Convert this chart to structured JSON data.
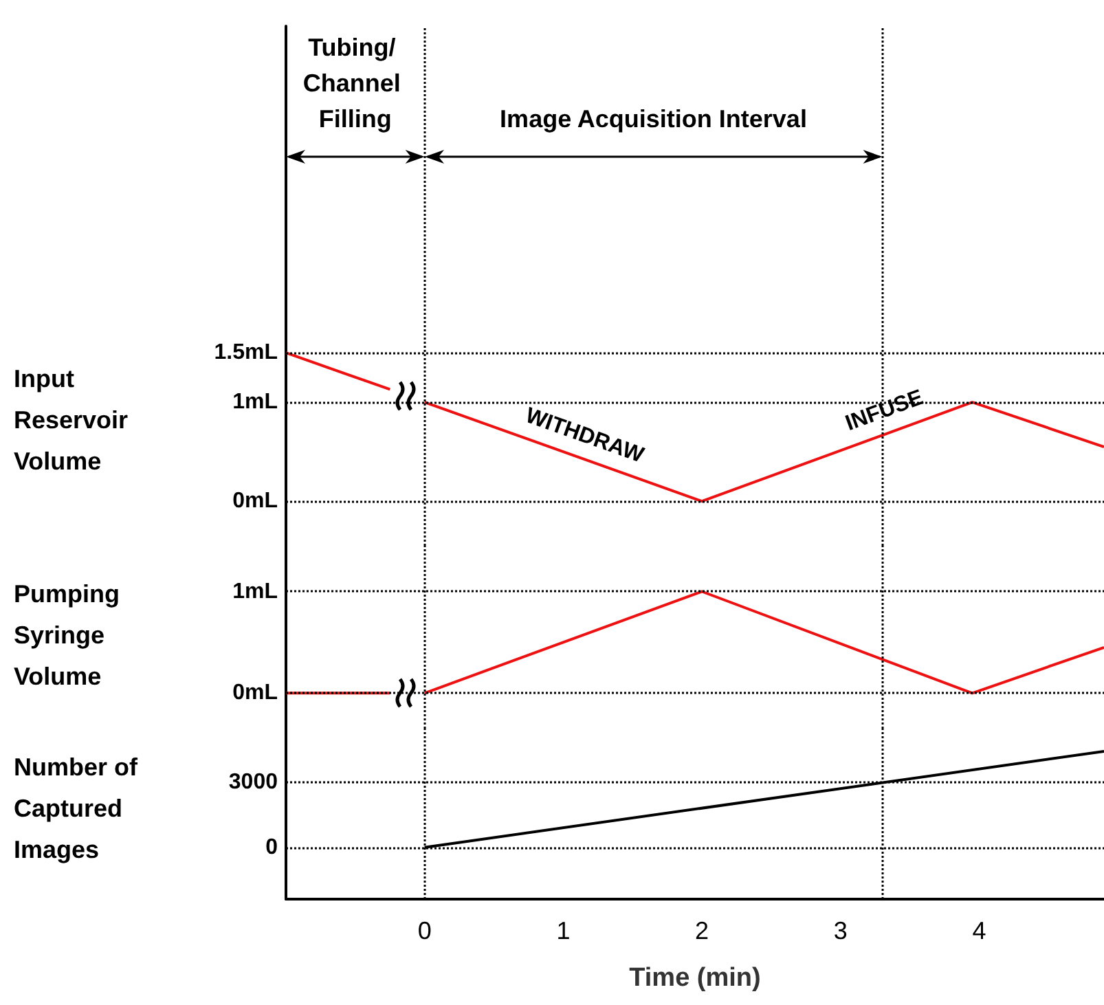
{
  "chart_data": [
    {
      "type": "line",
      "ylabel": "Input Reservoir Volume",
      "xlim": [
        -1,
        4.9
      ],
      "xticks": [
        0,
        1,
        2,
        3,
        4
      ],
      "ylim": [
        -0.45,
        4.8
      ],
      "yticks": [
        {
          "value": 0,
          "label": "0mL"
        },
        {
          "value": 1,
          "label": "1mL"
        },
        {
          "value": 1.5,
          "label": "1.5mL"
        }
      ],
      "tick_labels": "y",
      "grid": "y",
      "marker": "none",
      "series": [
        {
          "color": "#ee1111",
          "x": [
            -1,
            -0.25,
            -0.12,
            0,
            2,
            3.95,
            4.9
          ],
          "values": [
            1.5,
            1.13,
            null,
            1,
            0,
            1,
            0.55
          ]
        }
      ],
      "ref_lines": [
        {
          "axis": "x",
          "value": 0
        },
        {
          "axis": "x",
          "value": 3.3
        }
      ],
      "annotations": [
        "Tubing/ Channel Filling",
        "Image Acquisition Interval",
        "WITHDRAW",
        "INFUSE"
      ]
    },
    {
      "type": "line",
      "ylabel": "Pumping Syringe Volume",
      "xlim": [
        -1,
        4.9
      ],
      "xticks": [
        0,
        1,
        2,
        3,
        4
      ],
      "ylim": [
        -0.35,
        1.45
      ],
      "yticks": [
        {
          "value": 0,
          "label": "0mL"
        },
        {
          "value": 1,
          "label": "1mL"
        }
      ],
      "tick_labels": "y",
      "grid": "y",
      "marker": "none",
      "series": [
        {
          "color": "#ee1111",
          "x": [
            -1,
            -0.25,
            -0.12,
            0,
            2,
            3.95,
            4.9
          ],
          "values": [
            0,
            0,
            null,
            0,
            1,
            0,
            0.45
          ]
        }
      ],
      "ref_lines": [
        {
          "axis": "x",
          "value": 0
        },
        {
          "axis": "x",
          "value": 3.3
        }
      ]
    },
    {
      "type": "line",
      "ylabel": "Number of Captured Images",
      "xlabel": "Time (min)",
      "xlim": [
        -1,
        4.9
      ],
      "xticks": [
        0,
        1,
        2,
        3,
        4
      ],
      "ylim": [
        -2400,
        5500
      ],
      "yticks": [
        0,
        3000
      ],
      "grid": "y",
      "marker": "none",
      "series": [
        {
          "color": "#000000",
          "x": [
            0,
            4.9
          ],
          "values": [
            0,
            4450
          ]
        }
      ],
      "ref_lines": [
        {
          "axis": "x",
          "value": 0
        },
        {
          "axis": "x",
          "value": 3.3
        }
      ]
    }
  ]
}
